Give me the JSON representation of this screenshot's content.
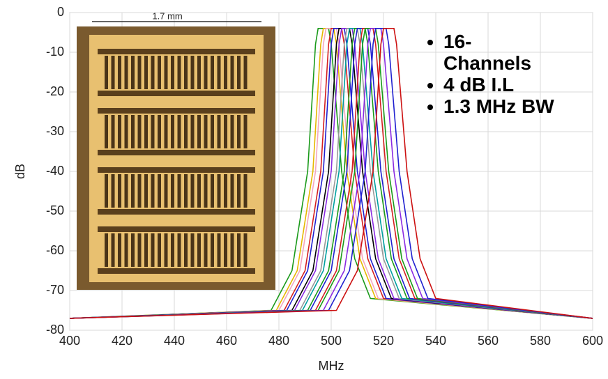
{
  "chart_data": {
    "type": "line",
    "xlabel": "MHz",
    "ylabel": "dB",
    "xlim": [
      400,
      600
    ],
    "xticks": [
      400,
      420,
      440,
      460,
      480,
      500,
      520,
      540,
      560,
      580,
      600
    ],
    "ylim": [
      -80,
      0
    ],
    "yticks": [
      0,
      -10,
      -20,
      -30,
      -40,
      -50,
      -60,
      -70,
      -80
    ],
    "grid": true,
    "inset_label": "1.7 mm",
    "annotations": [
      "16-\nChannels",
      "4 dB I.L",
      "1.3 MHz BW"
    ],
    "series": [
      {
        "color": "#1a9a1a",
        "x": [
          400,
          477,
          485,
          491,
          494,
          495,
          499,
          500,
          504,
          509,
          515,
          600
        ],
        "values": [
          -77,
          -75,
          -65,
          -40,
          -8,
          -4,
          -4,
          -8,
          -40,
          -62,
          -72,
          -77
        ]
      },
      {
        "color": "#e6b800",
        "x": [
          400,
          479,
          487,
          493,
          496,
          497,
          501,
          502,
          506,
          511,
          517,
          600
        ],
        "values": [
          -77,
          -75,
          -65,
          -40,
          -8,
          -4,
          -4,
          -8,
          -40,
          -62,
          -72,
          -77
        ]
      },
      {
        "color": "#f4a6c0",
        "x": [
          400,
          480,
          488,
          494,
          497,
          498,
          502,
          503,
          507,
          512,
          518,
          600
        ],
        "values": [
          -77,
          -75,
          -65,
          -40,
          -8,
          -4,
          -4,
          -8,
          -40,
          -62,
          -72,
          -77
        ]
      },
      {
        "color": "#d42020",
        "x": [
          400,
          482,
          490,
          496,
          499,
          500,
          504,
          505,
          509,
          514,
          520,
          600
        ],
        "values": [
          -77,
          -75,
          -65,
          -40,
          -8,
          -4,
          -4,
          -8,
          -40,
          -62,
          -72,
          -77
        ]
      },
      {
        "color": "#2020d0",
        "x": [
          400,
          483,
          491,
          497,
          500,
          501,
          505,
          506,
          510,
          515,
          521,
          600
        ],
        "values": [
          -77,
          -75,
          -65,
          -40,
          -8,
          -4,
          -4,
          -8,
          -40,
          -62,
          -72,
          -77
        ]
      },
      {
        "color": "#000000",
        "x": [
          400,
          485,
          493,
          499,
          502,
          503,
          507,
          508,
          512,
          517,
          523,
          600
        ],
        "values": [
          -77,
          -75,
          -65,
          -40,
          -8,
          -4,
          -4,
          -8,
          -40,
          -62,
          -72,
          -77
        ]
      },
      {
        "color": "#8a2be2",
        "x": [
          400,
          486,
          494,
          500,
          503,
          504,
          508,
          509,
          513,
          518,
          524,
          600
        ],
        "values": [
          -77,
          -75,
          -65,
          -40,
          -8,
          -4,
          -4,
          -8,
          -40,
          -62,
          -72,
          -77
        ]
      },
      {
        "color": "#999999",
        "x": [
          400,
          488,
          496,
          502,
          505,
          506,
          510,
          511,
          515,
          520,
          526,
          600
        ],
        "values": [
          -77,
          -75,
          -65,
          -40,
          -8,
          -4,
          -4,
          -8,
          -40,
          -62,
          -72,
          -77
        ]
      },
      {
        "color": "#00a0a0",
        "x": [
          400,
          489,
          497,
          503,
          506,
          507,
          511,
          512,
          516,
          521,
          527,
          600
        ],
        "values": [
          -77,
          -75,
          -65,
          -40,
          -8,
          -4,
          -4,
          -8,
          -40,
          -62,
          -72,
          -77
        ]
      },
      {
        "color": "#1a9a1a",
        "x": [
          400,
          491,
          499,
          505,
          508,
          509,
          513,
          514,
          518,
          523,
          529,
          600
        ],
        "values": [
          -77,
          -75,
          -65,
          -40,
          -8,
          -4,
          -4,
          -8,
          -40,
          -62,
          -72,
          -77
        ]
      },
      {
        "color": "#2020d0",
        "x": [
          400,
          492,
          500,
          506,
          509,
          510,
          514,
          515,
          519,
          524,
          530,
          600
        ],
        "values": [
          -77,
          -75,
          -65,
          -40,
          -8,
          -4,
          -4,
          -8,
          -40,
          -62,
          -72,
          -77
        ]
      },
      {
        "color": "#d42020",
        "x": [
          400,
          494,
          502,
          508,
          511,
          512,
          516,
          517,
          521,
          526,
          532,
          600
        ],
        "values": [
          -77,
          -75,
          -65,
          -40,
          -8,
          -4,
          -4,
          -8,
          -40,
          -62,
          -72,
          -77
        ]
      },
      {
        "color": "#1a9a1a",
        "x": [
          400,
          495,
          503,
          509,
          512,
          513,
          517,
          518,
          522,
          527,
          533,
          600
        ],
        "values": [
          -77,
          -75,
          -65,
          -40,
          -8,
          -4,
          -4,
          -8,
          -40,
          -62,
          -72,
          -77
        ]
      },
      {
        "color": "#8a2be2",
        "x": [
          400,
          497,
          505,
          511,
          514,
          515,
          519,
          520,
          524,
          529,
          535,
          600
        ],
        "values": [
          -77,
          -75,
          -65,
          -40,
          -8,
          -4,
          -4,
          -8,
          -40,
          -62,
          -72,
          -77
        ]
      },
      {
        "color": "#2020d0",
        "x": [
          400,
          499,
          507,
          513,
          516,
          517,
          521,
          522,
          526,
          531,
          537,
          600
        ],
        "values": [
          -77,
          -75,
          -65,
          -40,
          -8,
          -4,
          -4,
          -8,
          -40,
          -62,
          -72,
          -77
        ]
      },
      {
        "color": "#cc1111",
        "x": [
          400,
          502,
          510,
          516,
          519,
          520,
          524,
          525,
          529,
          534,
          540,
          600
        ],
        "values": [
          -77,
          -75,
          -65,
          -40,
          -8,
          -4,
          -4,
          -8,
          -40,
          -62,
          -72,
          -77
        ]
      }
    ]
  }
}
